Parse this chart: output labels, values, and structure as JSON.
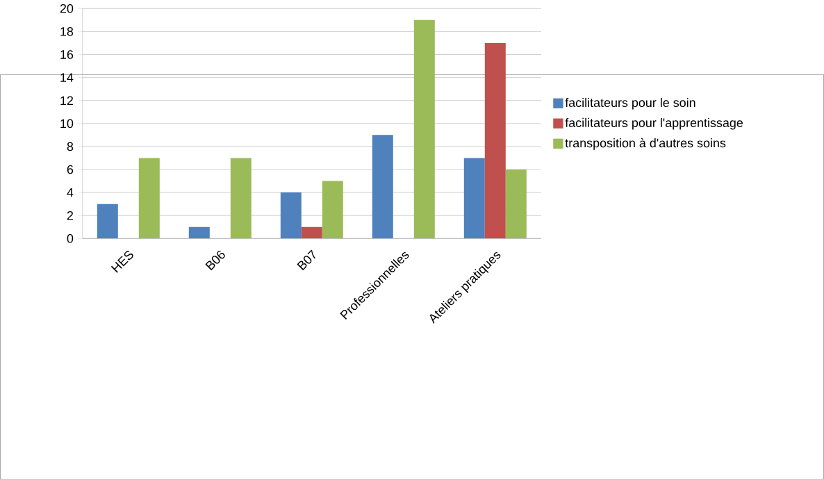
{
  "chart_data": {
    "type": "bar",
    "categories": [
      "HES",
      "B06",
      "B07",
      "Professionnelles",
      "Ateliers pratiques"
    ],
    "series": [
      {
        "name": "facilitateurs pour le soin",
        "color": "#4f81bd",
        "values": [
          3,
          1,
          4,
          9,
          7
        ]
      },
      {
        "name": "facilitateurs pour l'apprentissage",
        "color": "#c0504d",
        "values": [
          null,
          null,
          1,
          null,
          17
        ]
      },
      {
        "name": "transposition à d'autres soins",
        "color": "#9bbb59",
        "values": [
          7,
          7,
          5,
          19,
          6
        ]
      }
    ],
    "ylim": [
      0,
      20
    ],
    "yticks": [
      0,
      2,
      4,
      6,
      8,
      10,
      12,
      14,
      16,
      18,
      20
    ],
    "grid": "y",
    "legend": "right"
  }
}
